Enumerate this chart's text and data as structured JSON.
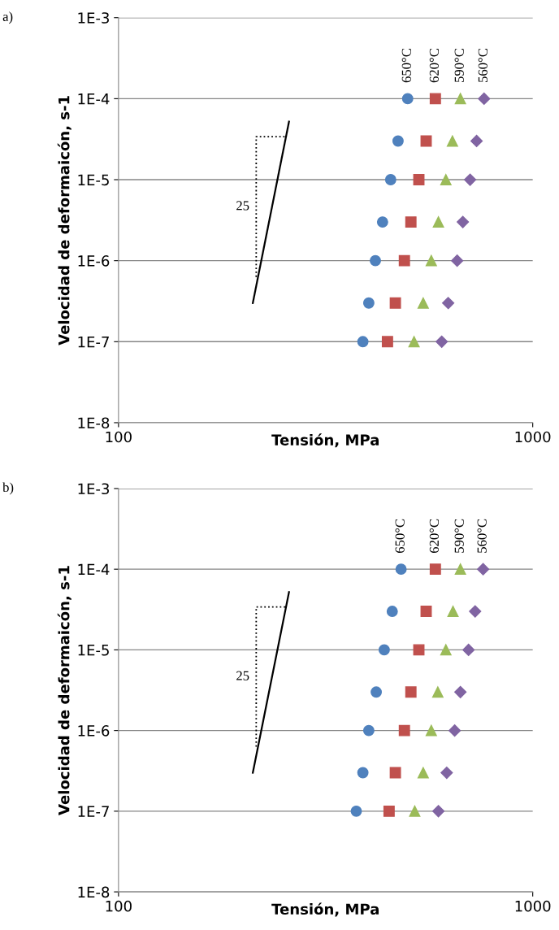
{
  "chart_data": [
    {
      "type": "scatter",
      "xlabel": "Tensión, MPa",
      "ylabel": "Velocidad de deformaicón, s-1",
      "log": "xy",
      "grid": "y",
      "legend": false,
      "xlim": [
        100,
        1000
      ],
      "xticks": [
        100,
        1000
      ],
      "ylim": [
        1e-08,
        0.001
      ],
      "yticks": [
        {
          "value": 1e-08,
          "label": "1E-8"
        },
        {
          "value": 1e-07,
          "label": "1E-7"
        },
        {
          "value": 1e-06,
          "label": "1E-6"
        },
        {
          "value": 1e-05,
          "label": "1E-5"
        },
        {
          "value": 0.0001,
          "label": "1E-4"
        },
        {
          "value": 0.001,
          "label": "1E-3"
        }
      ],
      "annotations": [
        "a)",
        "25"
      ],
      "series": [
        {
          "name": "650°C",
          "color": "#4f81bd",
          "marker": "circle",
          "x": [
            499,
            473,
            454,
            434,
            417,
            402,
            389
          ],
          "values": [
            0.0001,
            3e-05,
            1e-05,
            3e-06,
            1e-06,
            3e-07,
            1e-07
          ]
        },
        {
          "name": "620°C",
          "color": "#c0504d",
          "marker": "square",
          "x": [
            582,
            553,
            531,
            508,
            490,
            466,
            446
          ],
          "values": [
            0.0001,
            3e-05,
            1e-05,
            3e-06,
            1e-06,
            3e-07,
            1e-07
          ]
        },
        {
          "name": "590°C",
          "color": "#9bbb59",
          "marker": "triangle",
          "x": [
            669,
            640,
            617,
            592,
            569,
            544,
            517
          ],
          "values": [
            0.0001,
            3e-05,
            1e-05,
            3e-06,
            1e-06,
            3e-07,
            1e-07
          ]
        },
        {
          "name": "560°C",
          "color": "#8064a2",
          "marker": "diamond",
          "x": [
            763,
            732,
            706,
            678,
            657,
            625,
            603
          ],
          "values": [
            0.0001,
            3e-05,
            1e-05,
            3e-06,
            1e-06,
            3e-07,
            1e-07
          ]
        },
        {
          "type": "line",
          "color": "#000000",
          "line_style": "solid",
          "x": [
            211,
            258
          ],
          "values": [
            3e-07,
            5.2e-05
          ]
        },
        {
          "type": "line",
          "color": "#000000",
          "line_style": "dotted",
          "x": [
            215,
            215,
            254
          ],
          "values": [
            6.3e-07,
            3.4e-05,
            3.4e-05
          ]
        }
      ]
    },
    {
      "type": "scatter",
      "xlabel": "Tensión, MPa",
      "ylabel": "Velocidad de deformaicón, s-1",
      "log": "xy",
      "grid": "y",
      "legend": false,
      "xlim": [
        100,
        1000
      ],
      "xticks": [
        100,
        1000
      ],
      "ylim": [
        1e-08,
        0.001
      ],
      "yticks": [
        {
          "value": 1e-08,
          "label": "1E-8"
        },
        {
          "value": 1e-07,
          "label": "1E-7"
        },
        {
          "value": 1e-06,
          "label": "1E-6"
        },
        {
          "value": 1e-05,
          "label": "1E-5"
        },
        {
          "value": 0.0001,
          "label": "1E-4"
        },
        {
          "value": 0.001,
          "label": "1E-3"
        }
      ],
      "annotations": [
        "b)",
        "25"
      ],
      "series": [
        {
          "name": "650°C",
          "color": "#4f81bd",
          "marker": "circle",
          "x": [
            481,
            458,
            438,
            419,
            402,
            389,
            375
          ],
          "values": [
            0.0001,
            3e-05,
            1e-05,
            3e-06,
            1e-06,
            3e-07,
            1e-07
          ]
        },
        {
          "name": "620°C",
          "color": "#c0504d",
          "marker": "square",
          "x": [
            582,
            553,
            531,
            508,
            490,
            466,
            450
          ],
          "values": [
            0.0001,
            3e-05,
            1e-05,
            3e-06,
            1e-06,
            3e-07,
            1e-07
          ]
        },
        {
          "name": "590°C",
          "color": "#9bbb59",
          "marker": "triangle",
          "x": [
            669,
            642,
            617,
            590,
            569,
            544,
            519
          ],
          "values": [
            0.0001,
            3e-05,
            1e-05,
            3e-06,
            1e-06,
            3e-07,
            1e-07
          ]
        },
        {
          "name": "560°C",
          "color": "#8064a2",
          "marker": "diamond",
          "x": [
            759,
            726,
            700,
            669,
            648,
            620,
            592
          ],
          "values": [
            0.0001,
            3e-05,
            1e-05,
            3e-06,
            1e-06,
            3e-07,
            1e-07
          ]
        },
        {
          "type": "line",
          "color": "#000000",
          "line_style": "solid",
          "x": [
            211,
            258
          ],
          "values": [
            3e-07,
            5.2e-05
          ]
        },
        {
          "type": "line",
          "color": "#000000",
          "line_style": "dotted",
          "x": [
            215,
            215,
            254
          ],
          "values": [
            6.3e-07,
            3.4e-05,
            3.4e-05
          ]
        }
      ]
    }
  ]
}
